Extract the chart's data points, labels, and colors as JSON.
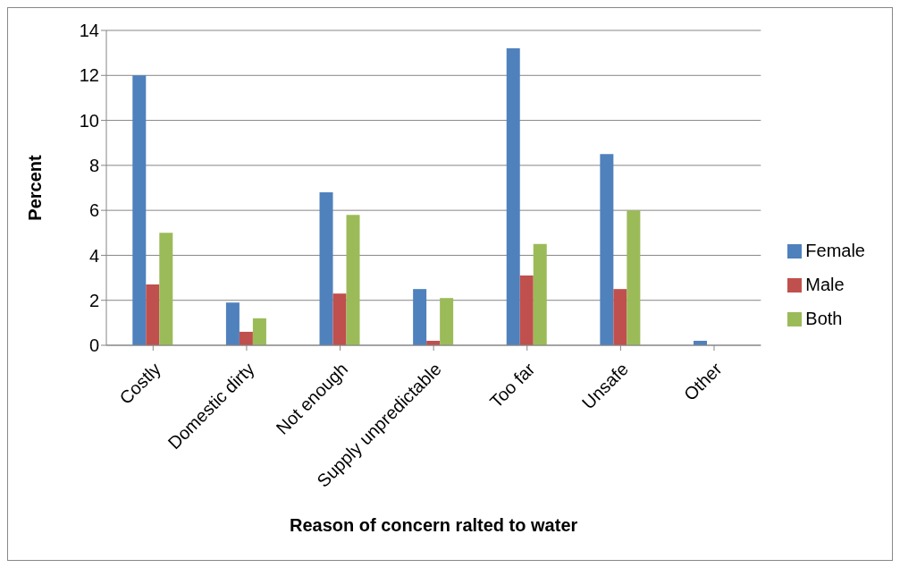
{
  "chart_data": {
    "type": "bar",
    "xlabel": "Reason of concern ralted to water",
    "ylabel": "Percent",
    "categories": [
      "Costly",
      "Domestic dirty",
      "Not enough",
      "Supply unpredictable",
      "Too far",
      "Unsafe",
      "Other"
    ],
    "series": [
      {
        "name": "Female",
        "color": "#4f81bd",
        "values": [
          12,
          1.9,
          6.8,
          2.5,
          13.2,
          8.5,
          0.2
        ]
      },
      {
        "name": "Male",
        "color": "#c0504d",
        "values": [
          2.7,
          0.6,
          2.3,
          0.2,
          3.1,
          2.5,
          0
        ]
      },
      {
        "name": "Both",
        "color": "#9bbb59",
        "values": [
          5,
          1.2,
          5.8,
          2.1,
          4.5,
          6,
          0
        ]
      }
    ],
    "ylim": [
      0,
      14
    ],
    "yticks": [
      0,
      2,
      4,
      6,
      8,
      10,
      12,
      14
    ],
    "grid": "y",
    "legend": "right"
  }
}
